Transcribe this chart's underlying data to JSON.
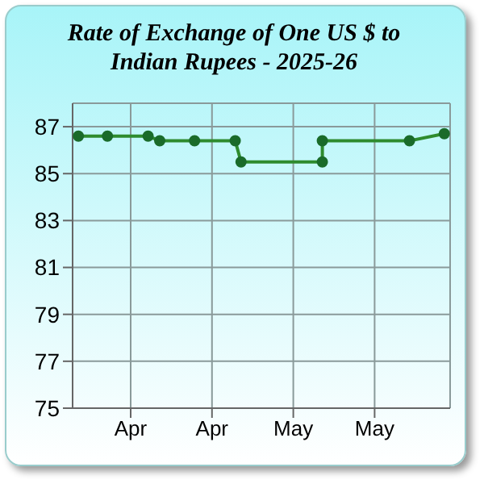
{
  "chart_data": {
    "type": "line",
    "title": "Rate of Exchange of One US $ to Indian Rupees - 2025-26",
    "x": [
      "2025-04-01",
      "2025-04-06",
      "2025-04-13",
      "2025-04-15",
      "2025-04-21",
      "2025-04-28",
      "2025-04-29",
      "2025-05-13",
      "2025-05-13",
      "2025-05-28",
      "2025-06-03"
    ],
    "series": [
      {
        "color": "#2e8b2e",
        "values": [
          86.6,
          86.6,
          86.6,
          86.4,
          86.4,
          86.4,
          85.5,
          85.5,
          86.4,
          86.4,
          86.7
        ]
      }
    ],
    "xlim": [
      "2025-03-31",
      "2025-06-04"
    ],
    "xticks": [
      {
        "value": "2025-04-10",
        "label": "Apr"
      },
      {
        "value": "2025-04-24",
        "label": "Apr"
      },
      {
        "value": "2025-05-08",
        "label": "May"
      },
      {
        "value": "2025-05-22",
        "label": "May"
      }
    ],
    "ylim": [
      75,
      88
    ],
    "yticks": [
      75,
      77,
      79,
      81,
      83,
      85,
      87
    ],
    "grid": true,
    "marker": "circle",
    "line_style": "solid"
  }
}
